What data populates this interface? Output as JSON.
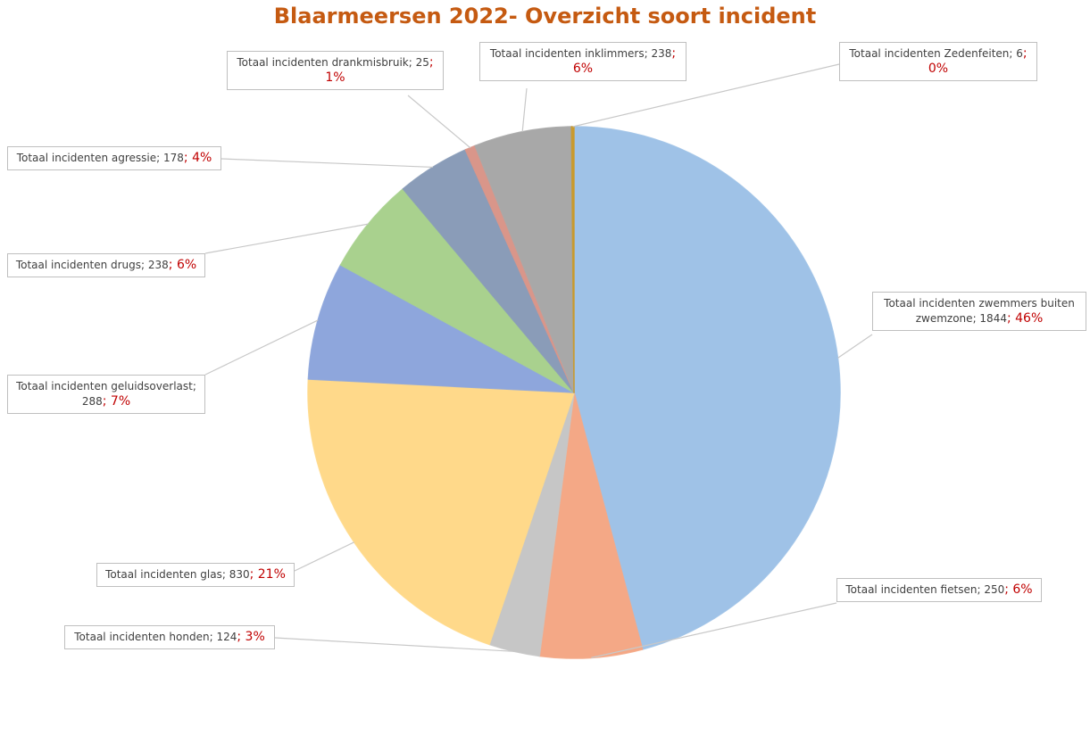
{
  "chart_data": {
    "type": "pie",
    "title": "Blaarmeersen 2022- Overzicht soort incident",
    "separator": "; ",
    "categories": [
      "Totaal incidenten zwemmers buiten zwemzone",
      "Totaal incidenten fietsen",
      "Totaal incidenten honden",
      "Totaal incidenten glas",
      "Totaal incidenten geluidsoverlast",
      "Totaal incidenten drugs",
      "Totaal incidenten agressie",
      "Totaal incidenten drankmisbruik",
      "Totaal incidenten inklimmers",
      "Totaal incidenten Zedenfeiten"
    ],
    "values": [
      1844,
      250,
      124,
      830,
      288,
      238,
      178,
      25,
      238,
      6
    ],
    "percent_labels": [
      "46%",
      "6%",
      "3%",
      "21%",
      "7%",
      "6%",
      "4%",
      "1%",
      "6%",
      "0%"
    ],
    "colors": [
      "#9fc2e7",
      "#f4a886",
      "#c6c6c6",
      "#ffd98a",
      "#8ea6dc",
      "#a9d18e",
      "#8a9cb8",
      "#d9968a",
      "#a8a8a8",
      "#c99a2e"
    ]
  }
}
